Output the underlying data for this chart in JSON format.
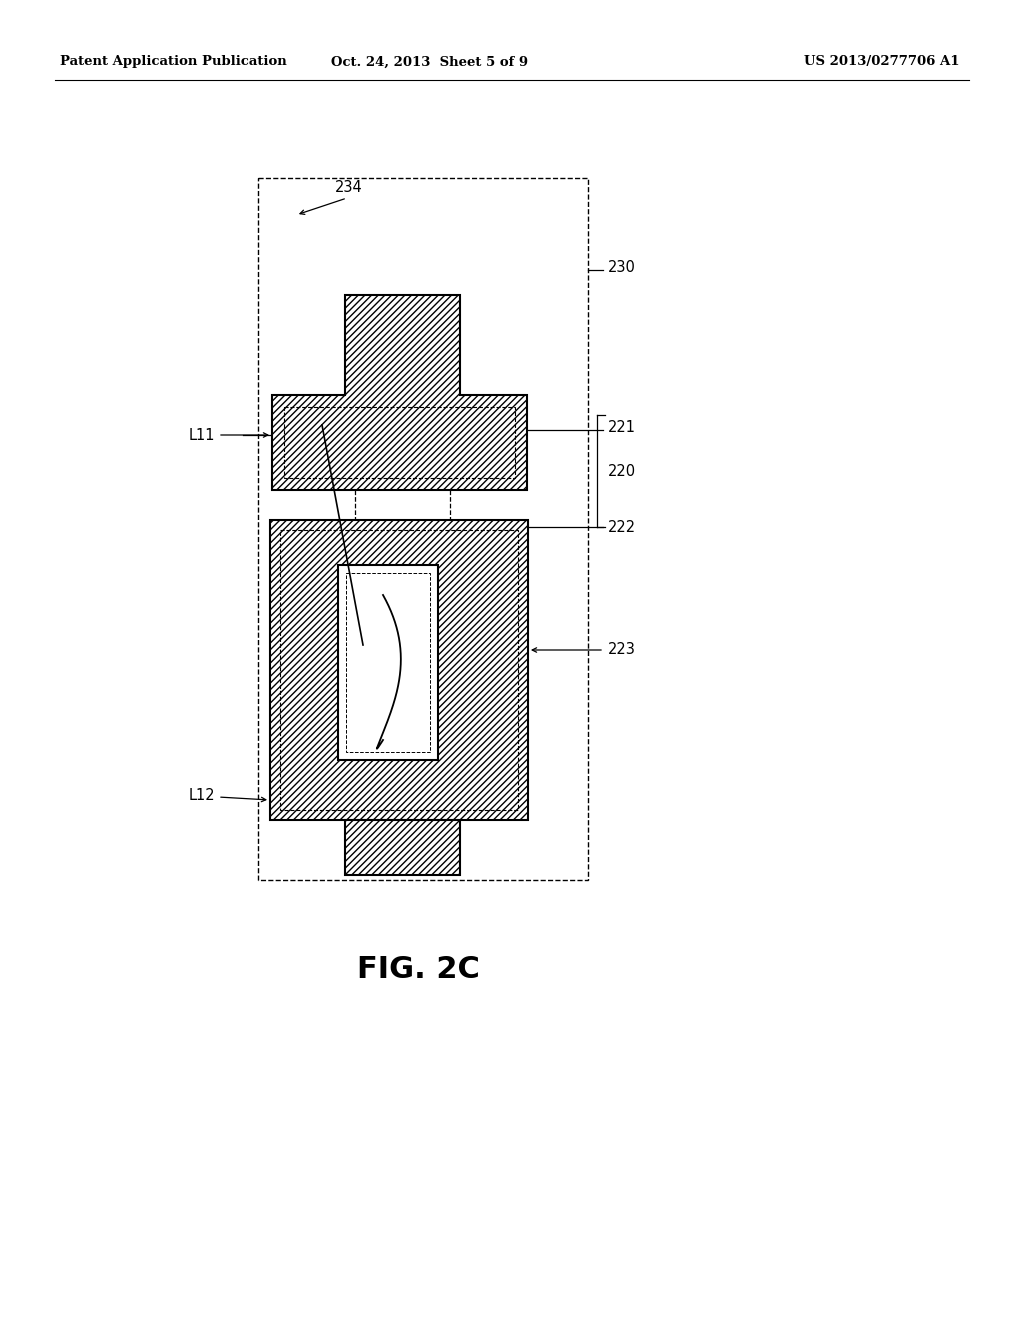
{
  "background_color": "#ffffff",
  "header_left": "Patent Application Publication",
  "header_center": "Oct. 24, 2013  Sheet 5 of 9",
  "header_right": "US 2013/0277706 A1",
  "figure_label": "FIG. 2C",
  "line_color": "#000000",
  "line_width": 1.5
}
